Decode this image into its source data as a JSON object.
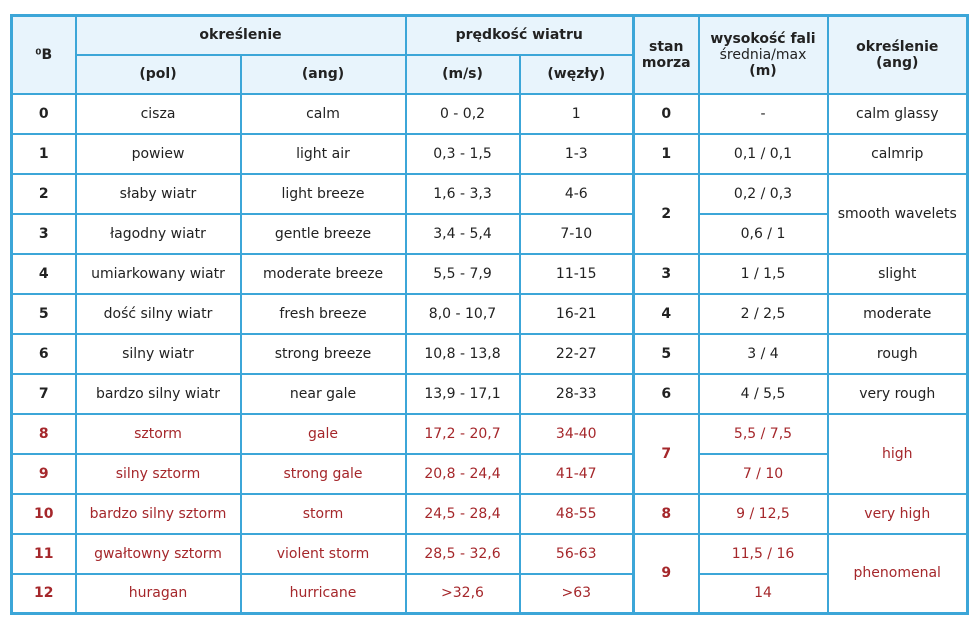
{
  "header": {
    "beaufort": "⁰B",
    "okreslenie": "określenie",
    "pol": "(pol)",
    "ang": "(ang)",
    "predkosc": "prędkość wiatru",
    "ms": "(m/s)",
    "wezly": "(węzły)",
    "stan_morza": "stan morza",
    "wysokosc_title": "wysokość fali",
    "wysokosc_sub": "średnia/max",
    "wysokosc_unit": "(m)",
    "okreslenie_ang": "określenie",
    "okreslenie_ang_sub": "(ang)"
  },
  "colors": {
    "border": "#3ca6d8",
    "header_bg": "#e8f4fc",
    "red": "#a5272b"
  },
  "rows": [
    {
      "b": "0",
      "pol": "cisza",
      "ang": "calm",
      "ms": "0 - 0,2",
      "kn": "1",
      "wave": "-"
    },
    {
      "b": "1",
      "pol": "powiew",
      "ang": "light air",
      "ms": "0,3 - 1,5",
      "kn": "1-3",
      "wave": "0,1 / 0,1"
    },
    {
      "b": "2",
      "pol": "słaby wiatr",
      "ang": "light breeze",
      "ms": "1,6 - 3,3",
      "kn": "4-6",
      "wave": "0,2 / 0,3"
    },
    {
      "b": "3",
      "pol": "łagodny wiatr",
      "ang": "gentle breeze",
      "ms": "3,4 - 5,4",
      "kn": "7-10",
      "wave": "0,6 / 1"
    },
    {
      "b": "4",
      "pol": "umiarkowany wiatr",
      "ang": "moderate breeze",
      "ms": "5,5 - 7,9",
      "kn": "11-15",
      "wave": "1 / 1,5"
    },
    {
      "b": "5",
      "pol": "dość silny wiatr",
      "ang": "fresh breeze",
      "ms": "8,0 - 10,7",
      "kn": "16-21",
      "wave": "2 / 2,5"
    },
    {
      "b": "6",
      "pol": "silny wiatr",
      "ang": "strong breeze",
      "ms": "10,8 - 13,8",
      "kn": "22-27",
      "wave": "3 / 4"
    },
    {
      "b": "7",
      "pol": "bardzo silny wiatr",
      "ang": "near gale",
      "ms": "13,9 - 17,1",
      "kn": "28-33",
      "wave": "4 / 5,5"
    },
    {
      "b": "8",
      "pol": "sztorm",
      "ang": "gale",
      "ms": "17,2 - 20,7",
      "kn": "34-40",
      "wave": "5,5 / 7,5",
      "red": true
    },
    {
      "b": "9",
      "pol": "silny sztorm",
      "ang": "strong gale",
      "ms": "20,8 - 24,4",
      "kn": "41-47",
      "wave": "7 / 10",
      "red": true
    },
    {
      "b": "10",
      "pol": "bardzo silny sztorm",
      "ang": "storm",
      "ms": "24,5 - 28,4",
      "kn": "48-55",
      "wave": "9 / 12,5",
      "red": true
    },
    {
      "b": "11",
      "pol": "gwałtowny sztorm",
      "ang": "violent storm",
      "ms": "28,5 - 32,6",
      "kn": "56-63",
      "wave": "11,5 / 16",
      "red": true
    },
    {
      "b": "12",
      "pol": "huragan",
      "ang": "hurricane",
      "ms": ">32,6",
      "kn": ">63",
      "wave": "14",
      "red": true
    }
  ],
  "sea_states": [
    {
      "state": "0",
      "start": 0,
      "span": 1
    },
    {
      "state": "1",
      "start": 1,
      "span": 1
    },
    {
      "state": "2",
      "start": 2,
      "span": 2
    },
    {
      "state": "3",
      "start": 4,
      "span": 1
    },
    {
      "state": "4",
      "start": 5,
      "span": 1
    },
    {
      "state": "5",
      "start": 6,
      "span": 1
    },
    {
      "state": "6",
      "start": 7,
      "span": 1
    },
    {
      "state": "7",
      "start": 8,
      "span": 2,
      "red": true
    },
    {
      "state": "8",
      "start": 10,
      "span": 1,
      "red": true
    },
    {
      "state": "9",
      "start": 11,
      "span": 2,
      "red": true
    }
  ],
  "sea_descriptions": [
    {
      "text": "calm glassy",
      "start": 0,
      "span": 1
    },
    {
      "text": "calmrip",
      "start": 1,
      "span": 1
    },
    {
      "text": "smooth wavelets",
      "start": 2,
      "span": 2
    },
    {
      "text": "slight",
      "start": 4,
      "span": 1
    },
    {
      "text": "moderate",
      "start": 5,
      "span": 1
    },
    {
      "text": "rough",
      "start": 6,
      "span": 1
    },
    {
      "text": "very rough",
      "start": 7,
      "span": 1
    },
    {
      "text": "high",
      "start": 8,
      "span": 2,
      "red": true
    },
    {
      "text": "very high",
      "start": 10,
      "span": 1,
      "red": true
    },
    {
      "text": "phenomenal",
      "start": 11,
      "span": 2,
      "red": true
    }
  ]
}
